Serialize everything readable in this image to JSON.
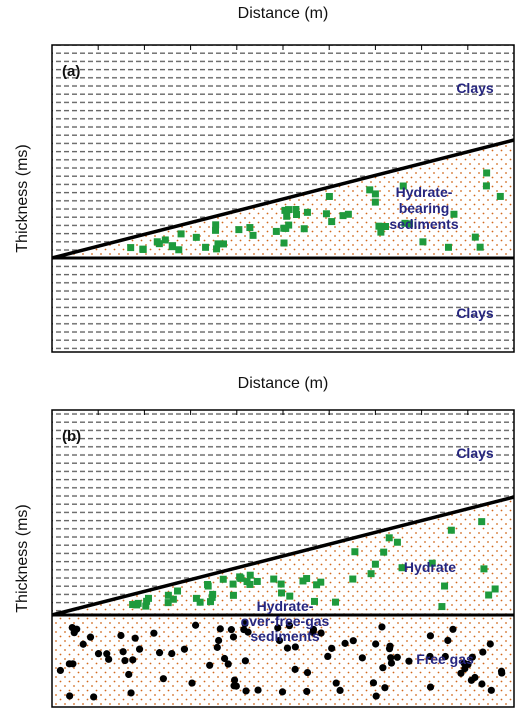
{
  "panels": [
    {
      "x_axis_title": "Distance (m)",
      "y_axis_title": "Thickness (ms)",
      "label": "(a)",
      "upper_layer": "Clays",
      "wedge_layer": [
        "Hydrate-",
        "bearing",
        "sediments"
      ],
      "lower_layer": "Clays"
    },
    {
      "x_axis_title": "Distance (m)",
      "y_axis_title": "Thickness (ms)",
      "label": "(b)",
      "upper_layer": "Clays",
      "wedge_layer": [
        "Hydrate"
      ],
      "boundary_layer": [
        "Hydrate-",
        "over-free-gas",
        "sediments"
      ],
      "lower_layer": "Free gas"
    }
  ]
}
